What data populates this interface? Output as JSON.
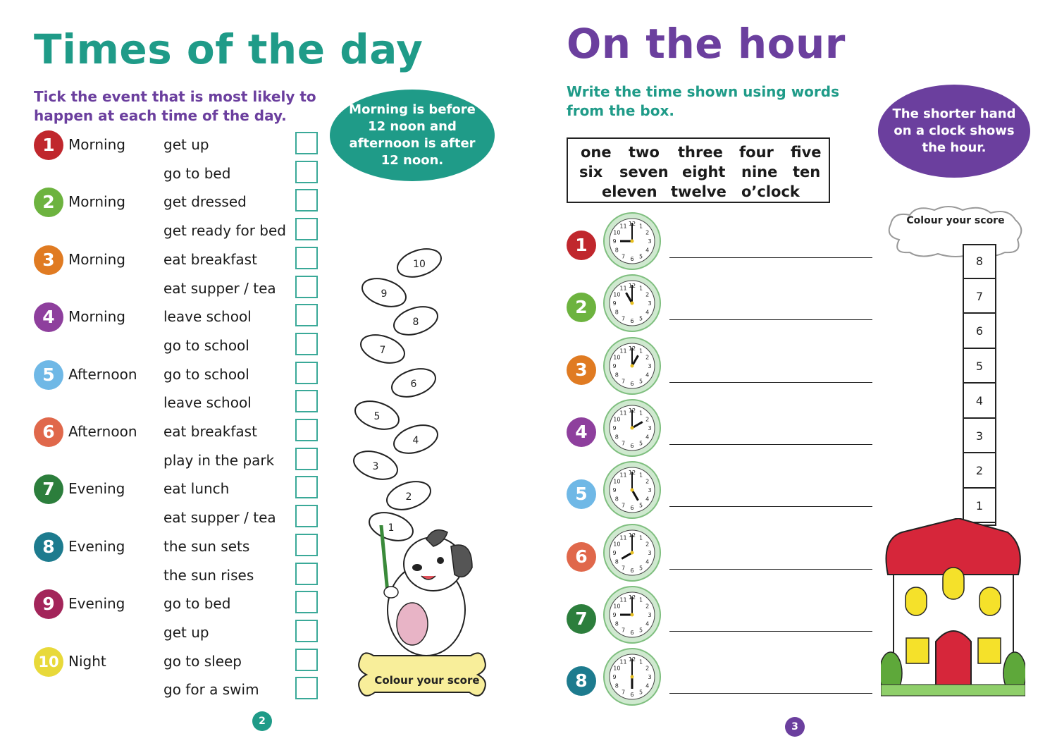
{
  "colors": {
    "teal": "#1f9b88",
    "purple": "#6b3f9e",
    "green_instr": "#1f9b88",
    "c1": "#c0272d",
    "c2": "#6db33f",
    "c3": "#e07b22",
    "c4": "#8e3f9d",
    "c5": "#6fb8e6",
    "c6": "#e0684b",
    "c7": "#2c7e3c",
    "c8": "#1d7b8e",
    "c9": "#a3255a",
    "c10": "#e8d93a"
  },
  "left_page": {
    "title": "Times of the day",
    "instruction": "Tick the event that is most likely to happen at each time of the day.",
    "info_oval": "Morning is before 12 noon and afternoon is after 12 noon.",
    "score_label": "Colour your score",
    "page_number": "2",
    "sausage_numbers": [
      "10",
      "9",
      "8",
      "7",
      "6",
      "5",
      "4",
      "3",
      "2",
      "1"
    ],
    "questions": [
      {
        "num": "1",
        "label": "Morning",
        "options": [
          "get up",
          "go to bed"
        ]
      },
      {
        "num": "2",
        "label": "Morning",
        "options": [
          "get dressed",
          "get ready for bed"
        ]
      },
      {
        "num": "3",
        "label": "Morning",
        "options": [
          "eat breakfast",
          "eat supper / tea"
        ]
      },
      {
        "num": "4",
        "label": "Morning",
        "options": [
          "leave school",
          "go to school"
        ]
      },
      {
        "num": "5",
        "label": "Afternoon",
        "options": [
          "go to school",
          "leave school"
        ]
      },
      {
        "num": "6",
        "label": "Afternoon",
        "options": [
          "eat breakfast",
          "play in the park"
        ]
      },
      {
        "num": "7",
        "label": "Evening",
        "options": [
          "eat lunch",
          "eat supper / tea"
        ]
      },
      {
        "num": "8",
        "label": "Evening",
        "options": [
          "the sun sets",
          "the sun rises"
        ]
      },
      {
        "num": "9",
        "label": "Evening",
        "options": [
          "go to bed",
          "get up"
        ]
      },
      {
        "num": "10",
        "label": "Night",
        "options": [
          "go to sleep",
          "go for a swim"
        ]
      }
    ]
  },
  "right_page": {
    "title": "On the hour",
    "instruction": "Write the time shown using words from the box.",
    "info_oval": "The shorter hand on a clock shows the hour.",
    "score_label": "Colour your score",
    "page_number": "3",
    "word_box": [
      "one",
      "two",
      "three",
      "four",
      "five",
      "six",
      "seven",
      "eight",
      "nine",
      "ten",
      "eleven",
      "twelve",
      "o’clock"
    ],
    "chimney_numbers": [
      "8",
      "7",
      "6",
      "5",
      "4",
      "3",
      "2",
      "1"
    ],
    "clock_numerals": [
      "12",
      "1",
      "2",
      "3",
      "4",
      "5",
      "6",
      "7",
      "8",
      "9",
      "10",
      "11"
    ],
    "clocks": [
      {
        "num": "1",
        "hour": 9
      },
      {
        "num": "2",
        "hour": 11
      },
      {
        "num": "3",
        "hour": 1
      },
      {
        "num": "4",
        "hour": 2
      },
      {
        "num": "5",
        "hour": 5
      },
      {
        "num": "6",
        "hour": 8
      },
      {
        "num": "7",
        "hour": 9
      },
      {
        "num": "8",
        "hour": 6
      }
    ]
  }
}
